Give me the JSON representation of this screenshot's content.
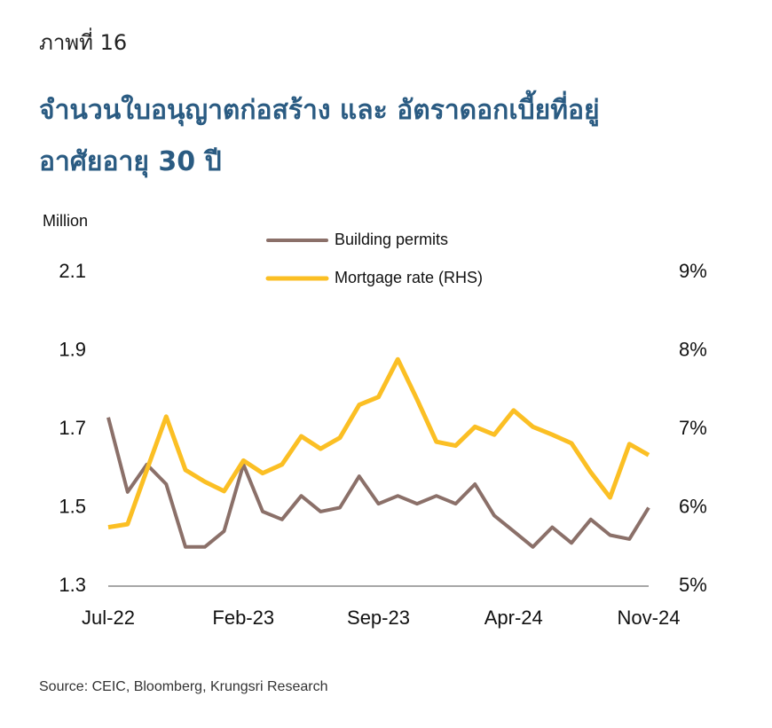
{
  "figure_label": "ภาพที่ 16",
  "chart_data": {
    "type": "line",
    "title": [
      "จำนวนใบอนุญาตก่อสร้าง และ อัตราดอกเบี้ยที่อยู่",
      "อาศัยอายุ 30 ปี"
    ],
    "y_label": "Million",
    "categories": [
      "Jul-22",
      null,
      null,
      null,
      null,
      null,
      null,
      "Feb-23",
      null,
      null,
      null,
      null,
      null,
      null,
      "Sep-23",
      null,
      null,
      null,
      null,
      null,
      null,
      "Apr-24",
      null,
      null,
      null,
      null,
      null,
      null,
      "Nov-24"
    ],
    "series": [
      {
        "name": "Building permits",
        "color": "#8b7069",
        "values": [
          1.73,
          1.54,
          1.61,
          1.56,
          1.4,
          1.4,
          1.44,
          1.61,
          1.49,
          1.47,
          1.53,
          1.49,
          1.5,
          1.58,
          1.51,
          1.53,
          1.51,
          1.53,
          1.51,
          1.56,
          1.48,
          1.44,
          1.4,
          1.45,
          1.41,
          1.47,
          1.43,
          1.42,
          1.5
        ]
      },
      {
        "name": "Mortgage rate (RHS)",
        "color": "#fbbf24",
        "axis": "y2",
        "values": [
          5.75,
          5.79,
          6.48,
          7.16,
          6.48,
          6.33,
          6.21,
          6.6,
          6.44,
          6.55,
          6.91,
          6.75,
          6.89,
          7.31,
          7.41,
          7.89,
          7.38,
          6.84,
          6.79,
          7.03,
          6.93,
          7.24,
          7.03,
          6.93,
          6.82,
          6.45,
          6.13,
          6.81,
          6.67
        ]
      }
    ],
    "ylim": [
      1.3,
      2.1
    ],
    "yticks": [
      1.3,
      1.5,
      1.7,
      1.9,
      2.1
    ],
    "y2lim": [
      5,
      9
    ],
    "y2ticks": [
      {
        "value": 5,
        "label": "5%"
      },
      {
        "value": 6,
        "label": "6%"
      },
      {
        "value": 7,
        "label": "7%"
      },
      {
        "value": 8,
        "label": "8%"
      },
      {
        "value": 9,
        "label": "9%"
      }
    ],
    "legend": "top",
    "source": "Source: CEIC, Bloomberg, Krungsri Research"
  }
}
